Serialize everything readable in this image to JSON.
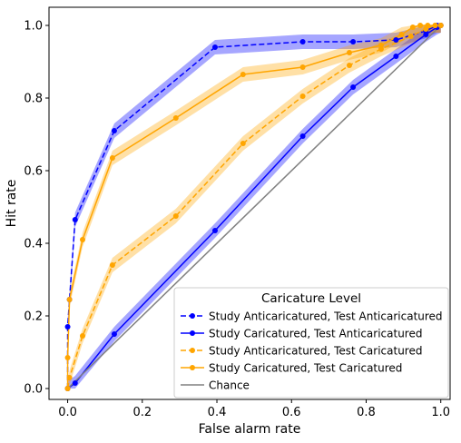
{
  "chart_data": {
    "type": "line",
    "title": "",
    "xlabel": "False alarm rate",
    "ylabel": "Hit rate",
    "xlim": [
      -0.05,
      1.025
    ],
    "ylim": [
      -0.03,
      1.05
    ],
    "xticks": [
      0.0,
      0.2,
      0.4,
      0.6,
      0.8,
      1.0
    ],
    "yticks": [
      0.0,
      0.2,
      0.4,
      0.6,
      0.8,
      1.0
    ],
    "tick_labels_x": [
      "0.0",
      "0.2",
      "0.4",
      "0.6",
      "0.8",
      "1.0"
    ],
    "tick_labels_y": [
      "0.0",
      "0.2",
      "0.4",
      "0.6",
      "0.8",
      "1.0"
    ],
    "grid": false,
    "legend": {
      "title": "Caricature Level",
      "position": "bottom-right"
    },
    "series": [
      {
        "name": "Study Anticaricatured, Test Anticaricatured",
        "color": "#0000ff",
        "linestyle": "dashed",
        "x": [
          0.0,
          0.0,
          0.005,
          0.02,
          0.125,
          0.395,
          0.63,
          0.765,
          0.88,
          0.96,
          0.99,
          1.0
        ],
        "y": [
          0.0,
          0.17,
          0.245,
          0.465,
          0.71,
          0.94,
          0.955,
          0.955,
          0.96,
          0.985,
          1.0,
          1.0
        ],
        "band": 0.02
      },
      {
        "name": "Study Caricatured, Test Anticaricatured",
        "color": "#0000ff",
        "linestyle": "solid",
        "x": [
          0.0,
          0.02,
          0.125,
          0.395,
          0.63,
          0.765,
          0.88,
          0.96,
          0.99,
          1.0
        ],
        "y": [
          0.0,
          0.015,
          0.15,
          0.435,
          0.695,
          0.83,
          0.915,
          0.975,
          0.995,
          1.0
        ],
        "band": 0.02
      },
      {
        "name": "Study Anticaricatured, Test Caricatured",
        "color": "#ffa500",
        "linestyle": "dashed",
        "x": [
          0.0,
          0.005,
          0.04,
          0.12,
          0.29,
          0.47,
          0.63,
          0.755,
          0.84,
          0.92,
          0.96,
          0.985,
          1.0
        ],
        "y": [
          0.0,
          0.03,
          0.145,
          0.34,
          0.475,
          0.675,
          0.805,
          0.89,
          0.935,
          0.97,
          0.99,
          1.0,
          1.0
        ],
        "band": 0.02
      },
      {
        "name": "Study Caricatured, Test Caricatured",
        "color": "#ffa500",
        "linestyle": "solid",
        "x": [
          0.0,
          0.0,
          0.005,
          0.04,
          0.12,
          0.29,
          0.47,
          0.63,
          0.755,
          0.84,
          0.895,
          0.925,
          0.945,
          0.965,
          0.985,
          1.0
        ],
        "y": [
          0.0,
          0.085,
          0.245,
          0.41,
          0.635,
          0.745,
          0.865,
          0.885,
          0.925,
          0.945,
          0.975,
          0.995,
          1.0,
          1.0,
          1.0,
          1.0
        ],
        "band": 0.02
      },
      {
        "name": "Chance",
        "color": "#808080",
        "linestyle": "solid",
        "marker": "none",
        "x": [
          0.0,
          1.0
        ],
        "y": [
          0.0,
          1.0
        ]
      }
    ]
  }
}
